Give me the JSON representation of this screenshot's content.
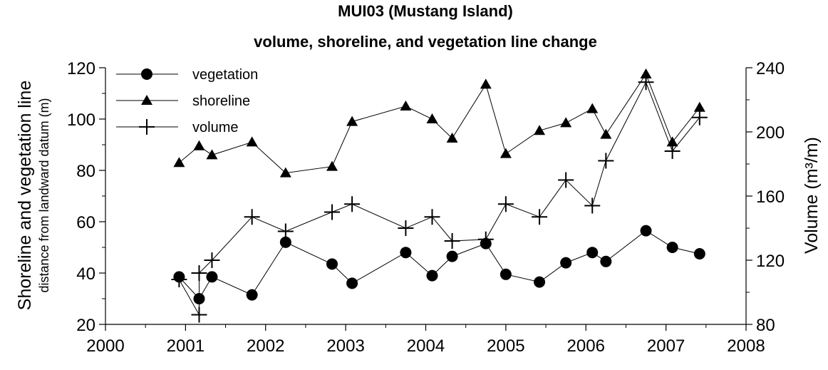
{
  "chart_data": {
    "type": "line",
    "title": "MUI03 (Mustang Island)",
    "subtitle": "volume, shoreline, and vegetation line change",
    "ylabel": "Shoreline and vegetation line",
    "ylabel_sub": "distance from landward datum (m)",
    "y2label": "Volume (m³/m)",
    "xlim": [
      2000,
      2008
    ],
    "ylim": [
      20,
      120
    ],
    "y2lim": [
      80,
      240
    ],
    "x_ticks": [
      "2000",
      "2001",
      "2002",
      "2003",
      "2004",
      "2005",
      "2006",
      "2007",
      "2008"
    ],
    "y_ticks": [
      "20",
      "40",
      "60",
      "80",
      "100",
      "120"
    ],
    "y2_ticks": [
      "80",
      "120",
      "160",
      "200",
      "240"
    ],
    "legend_position": "top-left",
    "series": [
      {
        "name": "vegetation",
        "marker": "circle",
        "axis": "left",
        "x": [
          2000.92,
          2001.17,
          2001.33,
          2001.83,
          2002.25,
          2002.83,
          2003.08,
          2003.75,
          2004.08,
          2004.33,
          2004.75,
          2005.0,
          2005.42,
          2005.75,
          2006.08,
          2006.25,
          2006.75,
          2007.08,
          2007.42
        ],
        "y": [
          38.5,
          30,
          38.5,
          31.5,
          52,
          43.5,
          36,
          48,
          39,
          46.5,
          51.5,
          39.5,
          36.5,
          44,
          48,
          44.5,
          56.5,
          50,
          47.5
        ]
      },
      {
        "name": "shoreline",
        "marker": "triangle",
        "axis": "left",
        "x": [
          2000.92,
          2001.17,
          2001.33,
          2001.83,
          2002.25,
          2002.83,
          2003.08,
          2003.75,
          2004.08,
          2004.33,
          2004.75,
          2005.0,
          2005.42,
          2005.75,
          2006.08,
          2006.25,
          2006.75,
          2007.08,
          2007.42
        ],
        "y": [
          83,
          89.5,
          86,
          91,
          79,
          81.5,
          99,
          105,
          100,
          92.5,
          113.5,
          86.5,
          95.5,
          98.5,
          104,
          94,
          117.5,
          91,
          104.5
        ]
      },
      {
        "name": "volume",
        "marker": "plus",
        "axis": "right",
        "x": [
          2000.92,
          2001.17,
          2001.17,
          2001.33,
          2001.83,
          2002.25,
          2002.83,
          2003.08,
          2003.75,
          2004.08,
          2004.33,
          2004.75,
          2005.0,
          2005.42,
          2005.75,
          2006.08,
          2006.25,
          2006.75,
          2007.08,
          2007.42
        ],
        "y": [
          108,
          86,
          112,
          120,
          147,
          138,
          150,
          155,
          140,
          147,
          132,
          133,
          155,
          147,
          170,
          154,
          182,
          231,
          188,
          209
        ]
      }
    ]
  }
}
